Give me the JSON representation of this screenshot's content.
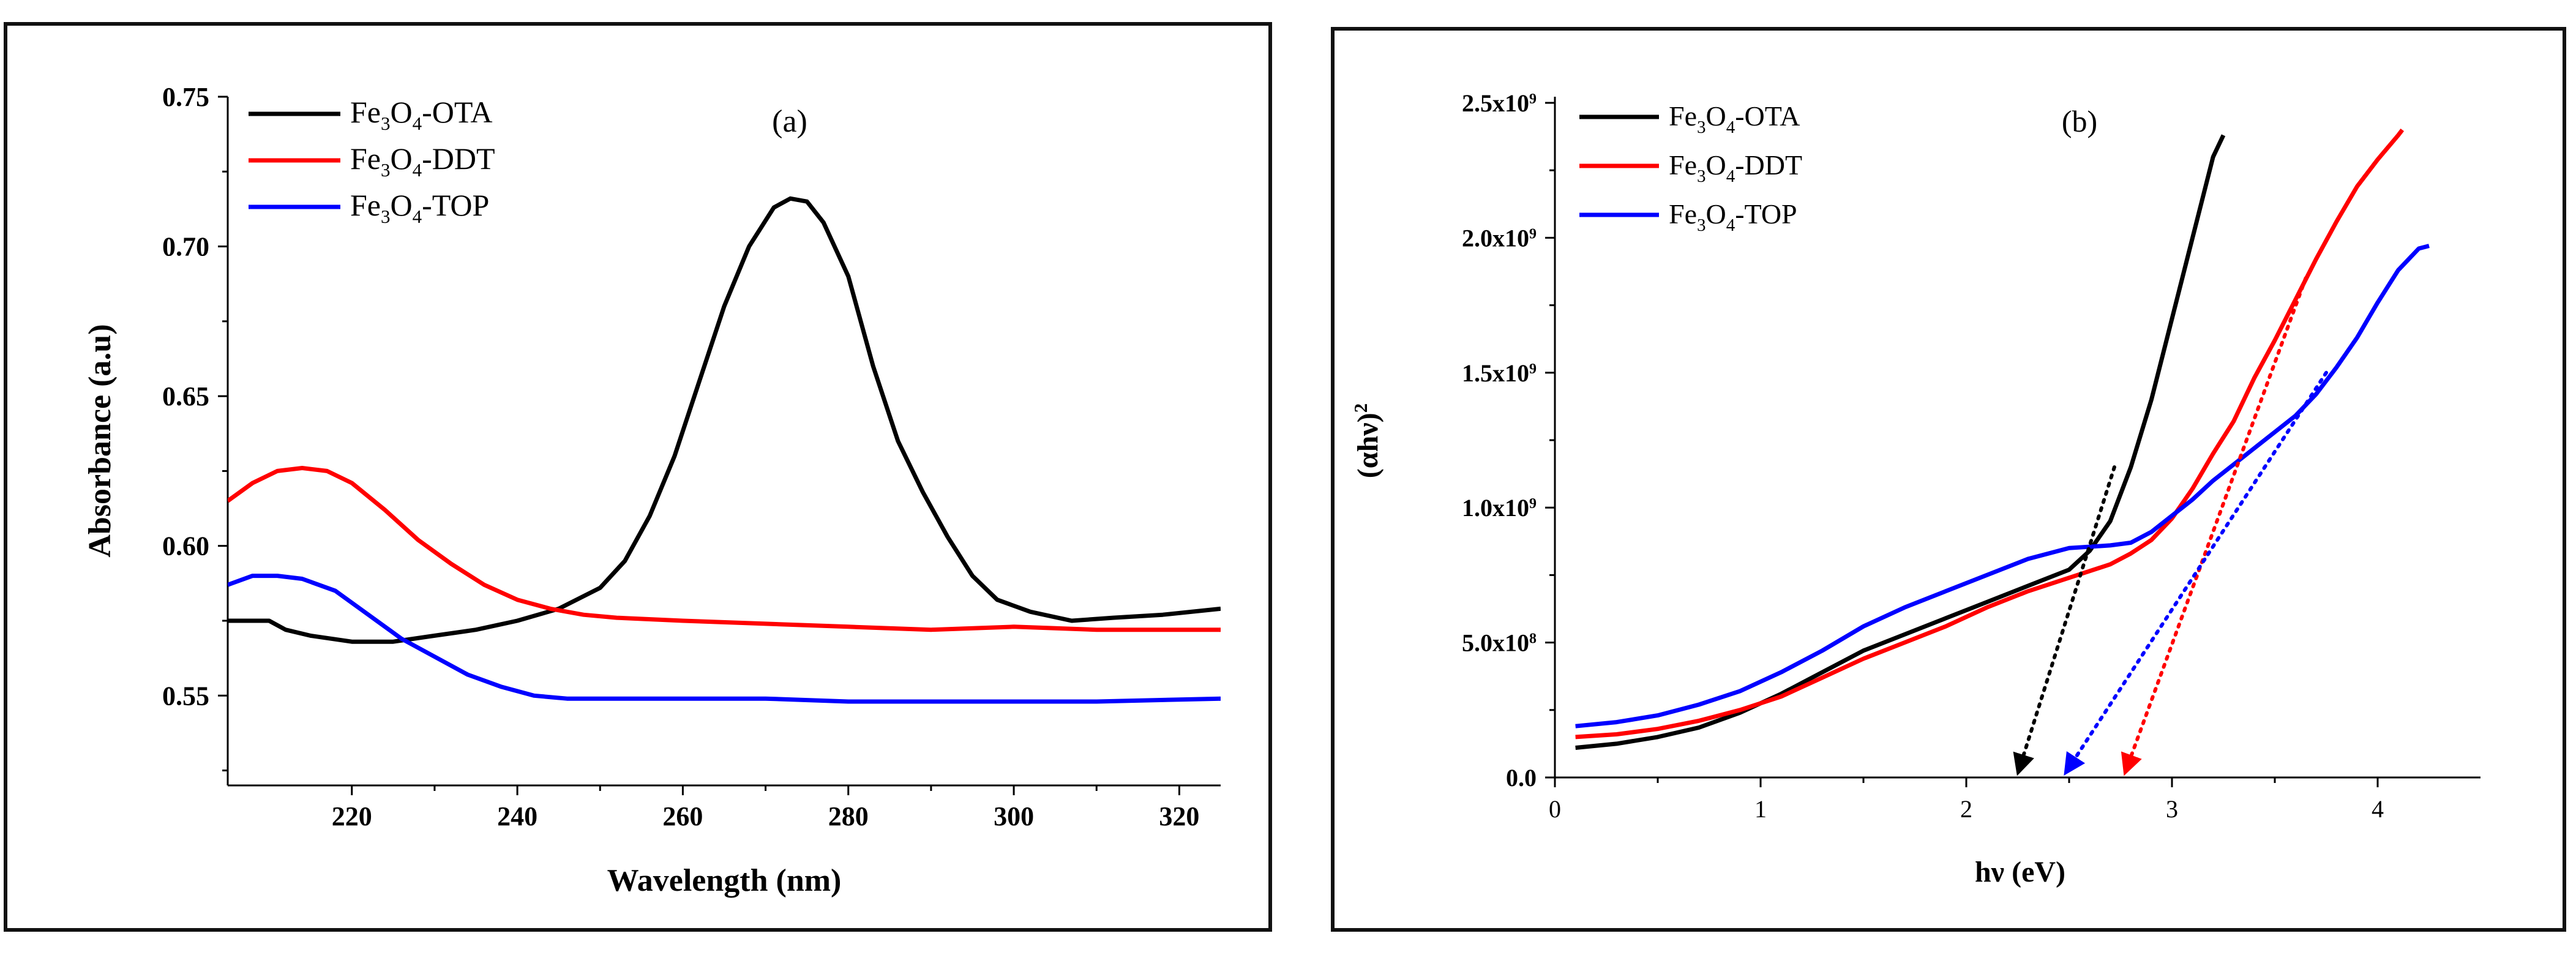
{
  "chart_data": [
    {
      "type": "line",
      "panel_label": "(a)",
      "xlabel": "Wavelength (nm)",
      "ylabel": "Absorbance (a.u)",
      "xlim": [
        205,
        325
      ],
      "ylim": [
        0.52,
        0.75
      ],
      "x_ticks": [
        220,
        240,
        260,
        280,
        300,
        320
      ],
      "x_tick_labels": [
        "220",
        "240",
        "260",
        "280",
        "300",
        "320"
      ],
      "y_ticks": [
        0.55,
        0.6,
        0.65,
        0.7,
        0.75
      ],
      "y_tick_labels": [
        "0.55",
        "0.60",
        "0.65",
        "0.70",
        "0.75"
      ],
      "legend_position": "top-left",
      "series": [
        {
          "name": "Fe3O4-OTA",
          "label_parts": [
            "Fe",
            "3",
            "O",
            "4",
            "-OTA"
          ],
          "color": "#000000",
          "points": [
            [
              205,
              0.575
            ],
            [
              210,
              0.575
            ],
            [
              212,
              0.572
            ],
            [
              215,
              0.57
            ],
            [
              220,
              0.568
            ],
            [
              225,
              0.568
            ],
            [
              230,
              0.57
            ],
            [
              235,
              0.572
            ],
            [
              240,
              0.575
            ],
            [
              245,
              0.579
            ],
            [
              250,
              0.586
            ],
            [
              253,
              0.595
            ],
            [
              256,
              0.61
            ],
            [
              259,
              0.63
            ],
            [
              262,
              0.655
            ],
            [
              265,
              0.68
            ],
            [
              268,
              0.7
            ],
            [
              271,
              0.713
            ],
            [
              273,
              0.716
            ],
            [
              275,
              0.715
            ],
            [
              277,
              0.708
            ],
            [
              280,
              0.69
            ],
            [
              283,
              0.66
            ],
            [
              286,
              0.635
            ],
            [
              289,
              0.618
            ],
            [
              292,
              0.603
            ],
            [
              295,
              0.59
            ],
            [
              298,
              0.582
            ],
            [
              302,
              0.578
            ],
            [
              307,
              0.575
            ],
            [
              312,
              0.576
            ],
            [
              318,
              0.577
            ],
            [
              325,
              0.579
            ]
          ]
        },
        {
          "name": "Fe3O4-DDT",
          "label_parts": [
            "Fe",
            "3",
            "O",
            "4",
            "-DDT"
          ],
          "color": "#ff0000",
          "points": [
            [
              205,
              0.615
            ],
            [
              208,
              0.621
            ],
            [
              211,
              0.625
            ],
            [
              214,
              0.626
            ],
            [
              217,
              0.625
            ],
            [
              220,
              0.621
            ],
            [
              224,
              0.612
            ],
            [
              228,
              0.602
            ],
            [
              232,
              0.594
            ],
            [
              236,
              0.587
            ],
            [
              240,
              0.582
            ],
            [
              244,
              0.579
            ],
            [
              248,
              0.577
            ],
            [
              252,
              0.576
            ],
            [
              260,
              0.575
            ],
            [
              270,
              0.574
            ],
            [
              280,
              0.573
            ],
            [
              290,
              0.572
            ],
            [
              300,
              0.573
            ],
            [
              310,
              0.572
            ],
            [
              325,
              0.572
            ]
          ]
        },
        {
          "name": "Fe3O4-TOP",
          "label_parts": [
            "Fe",
            "3",
            "O",
            "4",
            "-TOP"
          ],
          "color": "#0000ff",
          "points": [
            [
              205,
              0.587
            ],
            [
              208,
              0.59
            ],
            [
              211,
              0.59
            ],
            [
              214,
              0.589
            ],
            [
              218,
              0.585
            ],
            [
              222,
              0.577
            ],
            [
              226,
              0.569
            ],
            [
              230,
              0.563
            ],
            [
              234,
              0.557
            ],
            [
              238,
              0.553
            ],
            [
              242,
              0.55
            ],
            [
              246,
              0.549
            ],
            [
              250,
              0.549
            ],
            [
              260,
              0.549
            ],
            [
              270,
              0.549
            ],
            [
              280,
              0.548
            ],
            [
              290,
              0.548
            ],
            [
              300,
              0.548
            ],
            [
              310,
              0.548
            ],
            [
              325,
              0.549
            ]
          ]
        }
      ]
    },
    {
      "type": "line",
      "panel_label": "(b)",
      "xlabel": "hν (eV)",
      "ylabel": "(αhν)2",
      "ylabel_parts": [
        "(αhν)",
        "2"
      ],
      "xlim": [
        0,
        4.5
      ],
      "ylim": [
        0,
        2500000000.0
      ],
      "x_ticks": [
        0,
        1,
        2,
        3,
        4
      ],
      "x_tick_labels": [
        "0",
        "1",
        "2",
        "3",
        "4"
      ],
      "y_ticks": [
        0,
        500000000.0,
        1000000000.0,
        1500000000.0,
        2000000000.0,
        2500000000.0
      ],
      "y_tick_labels": [
        [
          "0.0",
          ""
        ],
        [
          "5.0x10",
          "8"
        ],
        [
          "1.0x10",
          "9"
        ],
        [
          "1.5x10",
          "9"
        ],
        [
          "2.0x10",
          "9"
        ],
        [
          "2.5x10",
          "9"
        ]
      ],
      "legend_position": "top-left",
      "series": [
        {
          "name": "Fe3O4-OTA",
          "label_parts": [
            "Fe",
            "3",
            "O",
            "4",
            "-OTA"
          ],
          "color": "#000000",
          "points": [
            [
              0.1,
              110000000.0
            ],
            [
              0.3,
              125000000.0
            ],
            [
              0.5,
              150000000.0
            ],
            [
              0.7,
              185000000.0
            ],
            [
              0.9,
              240000000.0
            ],
            [
              1.1,
              310000000.0
            ],
            [
              1.3,
              390000000.0
            ],
            [
              1.5,
              470000000.0
            ],
            [
              1.7,
              530000000.0
            ],
            [
              1.9,
              590000000.0
            ],
            [
              2.1,
              650000000.0
            ],
            [
              2.3,
              710000000.0
            ],
            [
              2.5,
              770000000.0
            ],
            [
              2.6,
              840000000.0
            ],
            [
              2.7,
              950000000.0
            ],
            [
              2.8,
              1150000000.0
            ],
            [
              2.9,
              1400000000.0
            ],
            [
              3.0,
              1700000000.0
            ],
            [
              3.1,
              2000000000.0
            ],
            [
              3.2,
              2300000000.0
            ],
            [
              3.25,
              2380000000.0
            ]
          ],
          "tangent": {
            "from": [
              2.25,
              0
            ],
            "to": [
              2.72,
              1150000000.0
            ]
          }
        },
        {
          "name": "Fe3O4-DDT",
          "label_parts": [
            "Fe",
            "3",
            "O",
            "4",
            "-DDT"
          ],
          "color": "#ff0000",
          "points": [
            [
              0.1,
              150000000.0
            ],
            [
              0.3,
              160000000.0
            ],
            [
              0.5,
              180000000.0
            ],
            [
              0.7,
              210000000.0
            ],
            [
              0.9,
              250000000.0
            ],
            [
              1.1,
              300000000.0
            ],
            [
              1.3,
              370000000.0
            ],
            [
              1.5,
              440000000.0
            ],
            [
              1.7,
              500000000.0
            ],
            [
              1.9,
              560000000.0
            ],
            [
              2.1,
              630000000.0
            ],
            [
              2.3,
              690000000.0
            ],
            [
              2.5,
              740000000.0
            ],
            [
              2.7,
              790000000.0
            ],
            [
              2.8,
              830000000.0
            ],
            [
              2.9,
              880000000.0
            ],
            [
              3.0,
              960000000.0
            ],
            [
              3.1,
              1070000000.0
            ],
            [
              3.2,
              1200000000.0
            ],
            [
              3.3,
              1320000000.0
            ],
            [
              3.4,
              1480000000.0
            ],
            [
              3.5,
              1620000000.0
            ],
            [
              3.6,
              1770000000.0
            ],
            [
              3.7,
              1920000000.0
            ],
            [
              3.8,
              2060000000.0
            ],
            [
              3.9,
              2190000000.0
            ],
            [
              4.0,
              2290000000.0
            ],
            [
              4.1,
              2380000000.0
            ],
            [
              4.12,
              2400000000.0
            ]
          ],
          "tangent": {
            "from": [
              2.77,
              0
            ],
            "to": [
              3.65,
              1850000000.0
            ]
          }
        },
        {
          "name": "Fe3O4-TOP",
          "label_parts": [
            "Fe",
            "3",
            "O",
            "4",
            "-TOP"
          ],
          "color": "#0000ff",
          "points": [
            [
              0.1,
              190000000.0
            ],
            [
              0.3,
              205000000.0
            ],
            [
              0.5,
              230000000.0
            ],
            [
              0.7,
              270000000.0
            ],
            [
              0.9,
              320000000.0
            ],
            [
              1.1,
              390000000.0
            ],
            [
              1.3,
              470000000.0
            ],
            [
              1.5,
              560000000.0
            ],
            [
              1.7,
              630000000.0
            ],
            [
              1.9,
              690000000.0
            ],
            [
              2.1,
              750000000.0
            ],
            [
              2.3,
              810000000.0
            ],
            [
              2.5,
              850000000.0
            ],
            [
              2.7,
              860000000.0
            ],
            [
              2.8,
              870000000.0
            ],
            [
              2.9,
              910000000.0
            ],
            [
              3.0,
              970000000.0
            ],
            [
              3.1,
              1030000000.0
            ],
            [
              3.2,
              1100000000.0
            ],
            [
              3.3,
              1160000000.0
            ],
            [
              3.4,
              1220000000.0
            ],
            [
              3.5,
              1280000000.0
            ],
            [
              3.6,
              1340000000.0
            ],
            [
              3.7,
              1420000000.0
            ],
            [
              3.8,
              1520000000.0
            ],
            [
              3.9,
              1630000000.0
            ],
            [
              4.0,
              1760000000.0
            ],
            [
              4.1,
              1880000000.0
            ],
            [
              4.2,
              1960000000.0
            ],
            [
              4.25,
              1970000000.0
            ]
          ],
          "tangent": {
            "from": [
              2.48,
              0
            ],
            "to": [
              3.75,
              1500000000.0
            ]
          }
        }
      ]
    }
  ]
}
